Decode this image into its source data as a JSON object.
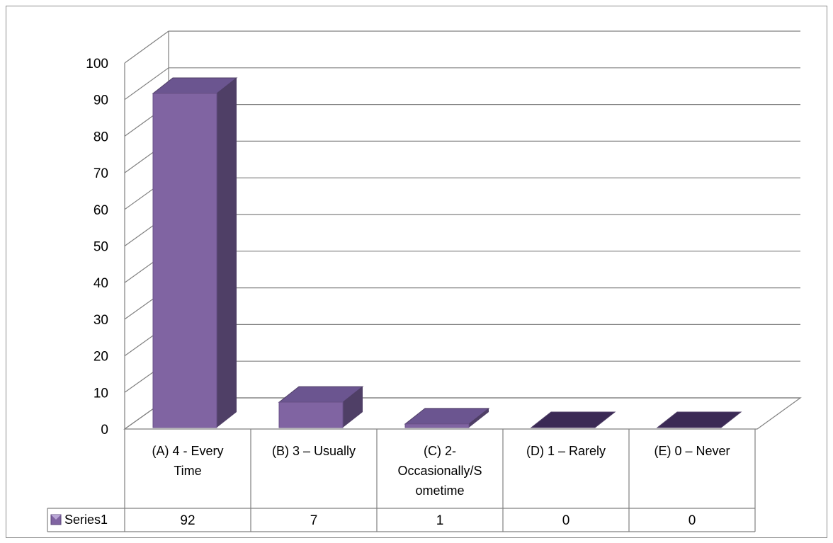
{
  "chart_data": {
    "type": "bar",
    "style": "3d-column-with-data-table",
    "categories": [
      [
        "(A) 4 - Every",
        "Time"
      ],
      [
        "(B)  3 – Usually"
      ],
      [
        "(C) 2-",
        "Occasionally/S",
        "ometime"
      ],
      [
        "(D)   1 – Rarely"
      ],
      [
        "(E)  0 – Never"
      ]
    ],
    "series": [
      {
        "name": "Series1",
        "values": [
          92,
          7,
          1,
          0,
          0
        ]
      }
    ],
    "y_ticks": [
      "0",
      "10",
      "20",
      "30",
      "40",
      "50",
      "60",
      "70",
      "80",
      "90",
      "100"
    ],
    "ylim": [
      0,
      100
    ],
    "grid": true,
    "legend": "data-table-left",
    "colors": {
      "bar_front": "#8064a2",
      "bar_side": "#4f3f66",
      "bar_top": "#6b5590",
      "bar_flat": "#3b2a55",
      "grid": "#808080",
      "legend_marker": "#8064a2"
    }
  }
}
